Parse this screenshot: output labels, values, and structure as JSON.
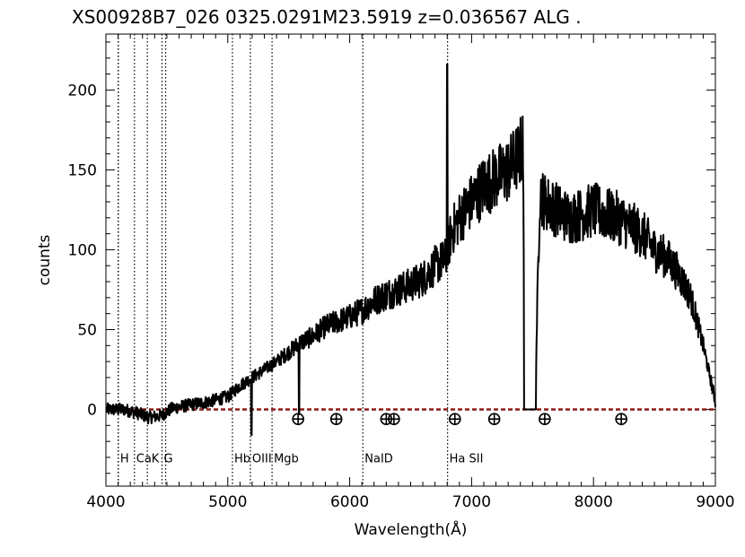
{
  "chart_data": {
    "type": "line",
    "title": "XS00928B7_026  0325.0291M23.5919  z=0.036567      ALG .",
    "xlabel": "Wavelength(Å)",
    "ylabel": "counts",
    "xlim": [
      4000,
      9000
    ],
    "ylim": [
      -48,
      235
    ],
    "grid": false,
    "x_ticks": [
      4000,
      5000,
      6000,
      7000,
      8000,
      9000
    ],
    "x_tick_labels": [
      "4000",
      "5000",
      "6000",
      "7000",
      "8000",
      "9000"
    ],
    "y_ticks": [
      0,
      50,
      100,
      150,
      200
    ],
    "y_tick_labels": [
      "0",
      "50",
      "100",
      "150",
      "200"
    ],
    "zero_line_color": "#8b1a1a",
    "line_color": "#000000",
    "spectrum_envelope": {
      "x": [
        4000,
        4150,
        4250,
        4350,
        4450,
        4550,
        4700,
        4850,
        5000,
        5100,
        5200,
        5300,
        5400,
        5500,
        5600,
        5700,
        5800,
        5900,
        6000,
        6100,
        6200,
        6300,
        6400,
        6500,
        6600,
        6700,
        6800,
        6830,
        6900,
        7000,
        7100,
        7200,
        7300,
        7380,
        7420,
        7440,
        7520,
        7560,
        7600,
        7700,
        7800,
        7900,
        8000,
        8100,
        8200,
        8300,
        8400,
        8500,
        8600,
        8700,
        8800,
        8900,
        9000
      ],
      "y": [
        0,
        0,
        -2,
        -5,
        -4,
        1,
        3,
        5,
        8,
        15,
        20,
        25,
        30,
        36,
        42,
        46,
        52,
        55,
        58,
        62,
        68,
        72,
        75,
        78,
        82,
        90,
        95,
        110,
        120,
        130,
        140,
        145,
        150,
        158,
        165,
        0,
        0,
        135,
        130,
        125,
        120,
        122,
        125,
        122,
        120,
        115,
        110,
        100,
        95,
        85,
        70,
        40,
        5
      ]
    },
    "spectral_lines": [
      {
        "label": "H",
        "x": 4102
      },
      {
        "label": "",
        "x": 4101
      },
      {
        "label": "CaK",
        "x": 4234
      },
      {
        "label": "",
        "x": 4340
      },
      {
        "label": "G",
        "x": 4460
      },
      {
        "label": "",
        "x": 4490
      },
      {
        "label": "Hb",
        "x": 5038
      },
      {
        "label": "OIII",
        "x": 5185
      },
      {
        "label": "Mgb",
        "x": 5363
      },
      {
        "label": "NaID",
        "x": 6108
      },
      {
        "label": "Ha SII",
        "x": 6803
      }
    ],
    "telluric_markers": {
      "symbol": "⊕",
      "x": [
        5577,
        5890,
        6300,
        6363,
        6863,
        7186,
        7600,
        8228
      ]
    }
  }
}
